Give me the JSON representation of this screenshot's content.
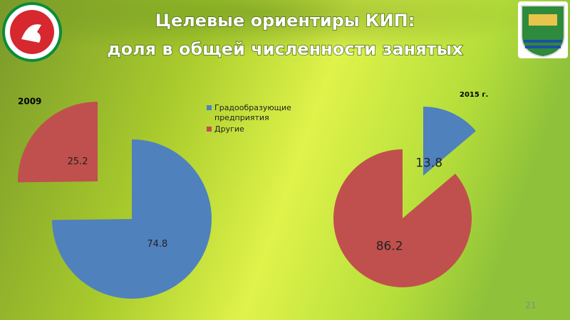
{
  "slide": {
    "title": [
      "Целевые ориентиры КИП:",
      "доля в общей численности занятых"
    ],
    "page_number": "21"
  },
  "chart_data": [
    {
      "type": "pie",
      "title": "2009",
      "categories": [
        "Градообразующие предприятия",
        "Другие"
      ],
      "values": [
        74.8,
        25.2
      ],
      "colors": [
        "#4f81bd",
        "#c0504d"
      ],
      "legend": true
    },
    {
      "type": "pie",
      "title": "2015 г.",
      "values": [
        13.8,
        86.2
      ],
      "colors": [
        "#4f81bd",
        "#c0504d"
      ],
      "legend": false
    }
  ]
}
